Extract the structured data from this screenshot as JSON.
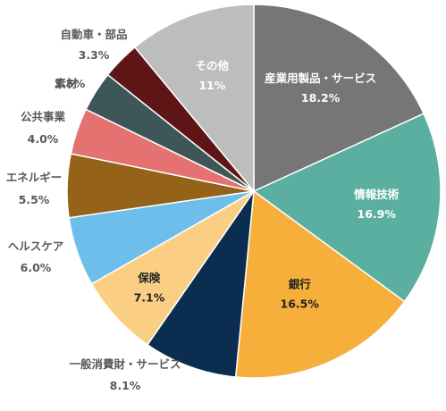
{
  "chart_data": {
    "type": "pie",
    "slices": [
      {
        "name": "産業用製品・サービス",
        "value": 18.2,
        "pct_label": "18.2%",
        "color": "#767676"
      },
      {
        "name": "情報技術",
        "value": 16.9,
        "pct_label": "16.9%",
        "color": "#5BAFA0"
      },
      {
        "name": "銀行",
        "value": 16.5,
        "pct_label": "16.5%",
        "color": "#F6AF3A"
      },
      {
        "name": "一般消費財・サービス",
        "value": 8.1,
        "pct_label": "8.1%",
        "color": "#0B2D50"
      },
      {
        "name": "保険",
        "value": 7.1,
        "pct_label": "7.1%",
        "color": "#FACF84"
      },
      {
        "name": "ヘルスケア",
        "value": 6.0,
        "pct_label": "6.0%",
        "color": "#6EBEEC"
      },
      {
        "name": "エネルギー",
        "value": 5.5,
        "pct_label": "5.5%",
        "color": "#946218"
      },
      {
        "name": "公共事業",
        "value": 4.0,
        "pct_label": "4.0%",
        "color": "#E47271"
      },
      {
        "name": "素材",
        "value": 3.5,
        "pct_label": "3.5%",
        "color": "#3F5659"
      },
      {
        "name": "自動車・部品",
        "value": 3.3,
        "pct_label": "3.3%",
        "color": "#5E1515"
      },
      {
        "name": "その他",
        "value": 11,
        "pct_label": "11%",
        "color": "#BDBDBD"
      }
    ]
  }
}
